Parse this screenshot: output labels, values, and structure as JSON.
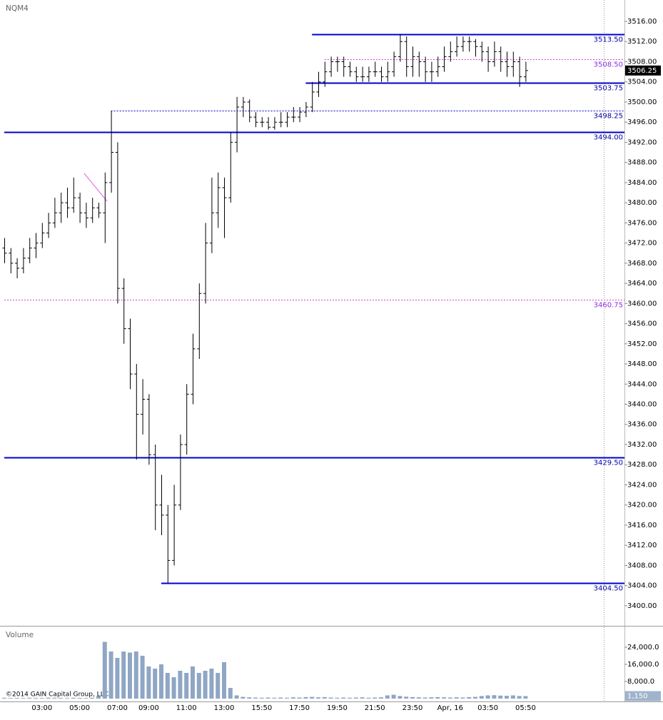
{
  "chart_data": {
    "type": "ohlc",
    "symbol": "NQM4",
    "volume_title": "Volume",
    "copyright": "©2014 GAIN Capital Group, LLC",
    "categories": [
      null,
      null,
      null,
      null,
      null,
      null,
      "03:00",
      null,
      null,
      null,
      null,
      null,
      "05:00",
      null,
      null,
      null,
      null,
      null,
      "07:00",
      null,
      null,
      null,
      null,
      "09:00",
      null,
      null,
      null,
      null,
      null,
      "11:00",
      null,
      null,
      null,
      null,
      null,
      "13:00",
      null,
      null,
      null,
      null,
      null,
      "15:50",
      null,
      null,
      null,
      null,
      null,
      "17:50",
      null,
      null,
      null,
      null,
      null,
      "19:50",
      null,
      null,
      null,
      null,
      null,
      "21:50",
      null,
      null,
      null,
      null,
      null,
      "23:50",
      null,
      null,
      null,
      null,
      null,
      "Apr, 16",
      null,
      null,
      null,
      null,
      null,
      "03:50",
      null,
      null,
      null,
      null,
      null,
      "05:50"
    ],
    "ohlc": [
      [
        3471,
        3473,
        3468,
        3470
      ],
      [
        3470,
        3471,
        3466,
        3468
      ],
      [
        3468,
        3469,
        3465,
        3467
      ],
      [
        3467,
        3471,
        3466,
        3469
      ],
      [
        3469,
        3473,
        3468,
        3471
      ],
      [
        3471,
        3474,
        3469,
        3472
      ],
      [
        3472,
        3476,
        3471,
        3474
      ],
      [
        3474,
        3478,
        3473,
        3476
      ],
      [
        3476,
        3481,
        3475,
        3478
      ],
      [
        3478,
        3482,
        3476,
        3480
      ],
      [
        3480,
        3483,
        3477,
        3479
      ],
      [
        3479,
        3485,
        3478,
        3481
      ],
      [
        3481,
        3482,
        3476,
        3478
      ],
      [
        3478,
        3480,
        3475,
        3477
      ],
      [
        3477,
        3481,
        3476,
        3479
      ],
      [
        3479,
        3480,
        3477,
        3478
      ],
      [
        3478,
        3486,
        3472,
        3484
      ],
      [
        3484,
        3498.25,
        3482,
        3490
      ],
      [
        3490,
        3492,
        3460,
        3463
      ],
      [
        3463,
        3465,
        3452,
        3455
      ],
      [
        3455,
        3457,
        3443,
        3446
      ],
      [
        3446,
        3448,
        3429,
        3438
      ],
      [
        3438,
        3445,
        3434,
        3441
      ],
      [
        3441,
        3442,
        3428,
        3430
      ],
      [
        3430,
        3432,
        3415,
        3420
      ],
      [
        3420,
        3426,
        3414,
        3418
      ],
      [
        3418,
        3420,
        3404.5,
        3409
      ],
      [
        3409,
        3424,
        3408,
        3420
      ],
      [
        3420,
        3434,
        3419,
        3432
      ],
      [
        3432,
        3444,
        3430,
        3442
      ],
      [
        3442,
        3454,
        3440,
        3451
      ],
      [
        3451,
        3464,
        3449,
        3462
      ],
      [
        3462,
        3476,
        3460,
        3472
      ],
      [
        3472,
        3485,
        3470,
        3478
      ],
      [
        3478,
        3486,
        3475,
        3483
      ],
      [
        3483,
        3485,
        3473,
        3481
      ],
      [
        3481,
        3494,
        3480,
        3492
      ],
      [
        3492,
        3501,
        3490,
        3499
      ],
      [
        3499,
        3501,
        3497,
        3500
      ],
      [
        3500,
        3500.5,
        3496,
        3497
      ],
      [
        3497,
        3498,
        3495,
        3496
      ],
      [
        3496,
        3497,
        3495,
        3496
      ],
      [
        3496,
        3497,
        3494.5,
        3495
      ],
      [
        3495,
        3497,
        3494.5,
        3496
      ],
      [
        3496,
        3498,
        3495,
        3496
      ],
      [
        3496,
        3498,
        3495,
        3497
      ],
      [
        3497,
        3499,
        3496,
        3497
      ],
      [
        3497,
        3499,
        3496,
        3498
      ],
      [
        3498,
        3500,
        3497,
        3499
      ],
      [
        3499,
        3504,
        3498,
        3502
      ],
      [
        3502,
        3506,
        3501,
        3504
      ],
      [
        3504,
        3508,
        3503,
        3506
      ],
      [
        3506,
        3509,
        3505,
        3508
      ],
      [
        3508,
        3509,
        3506,
        3508
      ],
      [
        3508,
        3509,
        3505,
        3507
      ],
      [
        3507,
        3508,
        3505,
        3506
      ],
      [
        3506,
        3507,
        3504,
        3505
      ],
      [
        3505,
        3507,
        3504,
        3505
      ],
      [
        3505,
        3507,
        3504,
        3506
      ],
      [
        3506,
        3508,
        3505,
        3506
      ],
      [
        3506,
        3507,
        3504,
        3505
      ],
      [
        3505,
        3508,
        3504,
        3506
      ],
      [
        3506,
        3510,
        3505,
        3509
      ],
      [
        3509,
        3513.5,
        3508,
        3512
      ],
      [
        3512,
        3513,
        3505,
        3507
      ],
      [
        3507,
        3511,
        3505,
        3509
      ],
      [
        3509,
        3510,
        3505,
        3508
      ],
      [
        3508,
        3509,
        3504,
        3506
      ],
      [
        3506,
        3508,
        3504,
        3506
      ],
      [
        3506,
        3509,
        3505,
        3507
      ],
      [
        3507,
        3511,
        3506,
        3509
      ],
      [
        3509,
        3512,
        3508,
        3510
      ],
      [
        3510,
        3513,
        3509,
        3511
      ],
      [
        3511,
        3513,
        3510,
        3512
      ],
      [
        3512,
        3513,
        3510,
        3512
      ],
      [
        3512,
        3512.5,
        3509,
        3511
      ],
      [
        3511,
        3512,
        3508,
        3510
      ],
      [
        3510,
        3511,
        3506,
        3508
      ],
      [
        3508,
        3512,
        3507,
        3510
      ],
      [
        3510,
        3511,
        3506,
        3508
      ],
      [
        3508,
        3510,
        3505,
        3507
      ],
      [
        3507,
        3510,
        3505,
        3508
      ],
      [
        3508,
        3509,
        3503,
        3505
      ],
      [
        3505,
        3508,
        3504,
        3506.25
      ]
    ],
    "bar_color": "#000000",
    "ylim": [
      3396.3,
      3520.25
    ],
    "yticks": [
      {
        "value": 3516,
        "label": "3516.00"
      },
      {
        "value": 3512,
        "label": "3512.00"
      },
      {
        "value": 3508,
        "label": "3508.00"
      },
      {
        "value": 3504,
        "label": "3504.00"
      },
      {
        "value": 3500,
        "label": "3500.00"
      },
      {
        "value": 3496,
        "label": "3496.00"
      },
      {
        "value": 3492,
        "label": "3492.00"
      },
      {
        "value": 3488,
        "label": "3488.00"
      },
      {
        "value": 3484,
        "label": "3484.00"
      },
      {
        "value": 3480,
        "label": "3480.00"
      },
      {
        "value": 3476,
        "label": "3476.00"
      },
      {
        "value": 3472,
        "label": "3472.00"
      },
      {
        "value": 3468,
        "label": "3468.00"
      },
      {
        "value": 3464,
        "label": "3464.00"
      },
      {
        "value": 3460,
        "label": "3460.00"
      },
      {
        "value": 3456,
        "label": "3456.00"
      },
      {
        "value": 3452,
        "label": "3452.00"
      },
      {
        "value": 3448,
        "label": "3448.00"
      },
      {
        "value": 3444,
        "label": "3444.00"
      },
      {
        "value": 3440,
        "label": "3440.00"
      },
      {
        "value": 3436,
        "label": "3436.00"
      },
      {
        "value": 3432,
        "label": "3432.00"
      },
      {
        "value": 3428,
        "label": "3428.00"
      },
      {
        "value": 3424,
        "label": "3424.00"
      },
      {
        "value": 3420,
        "label": "3420.00"
      },
      {
        "value": 3416,
        "label": "3416.00"
      },
      {
        "value": 3412,
        "label": "3412.00"
      },
      {
        "value": 3408,
        "label": "3408.00"
      },
      {
        "value": 3404,
        "label": "3404.00"
      },
      {
        "value": 3400,
        "label": "3400.00"
      }
    ],
    "last_price": 3506.25,
    "levels": [
      {
        "value": 3513.5,
        "label": "3513.50",
        "style": "solid",
        "color": "#0000cc",
        "from": 49
      },
      {
        "value": 3508.5,
        "label": "3508.50",
        "style": "dotted",
        "color": "#cc44cc",
        "from": 51
      },
      {
        "value": 3503.75,
        "label": "3503.75",
        "style": "solid",
        "color": "#0000cc",
        "from": 48
      },
      {
        "value": 3498.25,
        "label": "3498.25",
        "style": "dotted",
        "color": "#0000cc",
        "from": 17
      },
      {
        "value": 3494,
        "label": "3494.00",
        "style": "solid",
        "color": "#0000cc",
        "from": 0
      },
      {
        "value": 3460.75,
        "label": "3460.75",
        "style": "dotted",
        "color": "#cc44cc",
        "from": 0
      },
      {
        "value": 3429.5,
        "label": "3429.50",
        "style": "solid",
        "color": "#0000cc",
        "from": 0
      },
      {
        "value": 3404.5,
        "label": "3404.50",
        "style": "solid",
        "color": "#0000cc",
        "from": 25
      }
    ],
    "volume": [
      400,
      300,
      350,
      300,
      400,
      350,
      300,
      450,
      400,
      350,
      300,
      400,
      350,
      300,
      400,
      1200,
      26500,
      22000,
      19000,
      22000,
      21500,
      22000,
      20000,
      15000,
      14000,
      16000,
      12000,
      10000,
      13000,
      12000,
      15000,
      12000,
      13000,
      14000,
      12000,
      17000,
      5000,
      1500,
      800,
      600,
      500,
      400,
      500,
      400,
      500,
      400,
      600,
      500,
      700,
      800,
      600,
      700,
      500,
      400,
      500,
      400,
      500,
      600,
      400,
      500,
      600,
      1500,
      1800,
      1200,
      900,
      700,
      600,
      500,
      600,
      700,
      600,
      500,
      600,
      500,
      700,
      800,
      1200,
      1500,
      1600,
      1400,
      1300,
      1500,
      1200,
      1150
    ],
    "volume_color": "#8fa6c4",
    "volume_ylim": [
      0,
      33000
    ],
    "volume_yticks": [
      {
        "value": 24000,
        "label": "24,000.0"
      },
      {
        "value": 16000,
        "label": "16,000.0"
      },
      {
        "value": 8000,
        "label": "8,000.0"
      }
    ],
    "current_volume": {
      "value": 1150,
      "label": "1,150"
    }
  }
}
